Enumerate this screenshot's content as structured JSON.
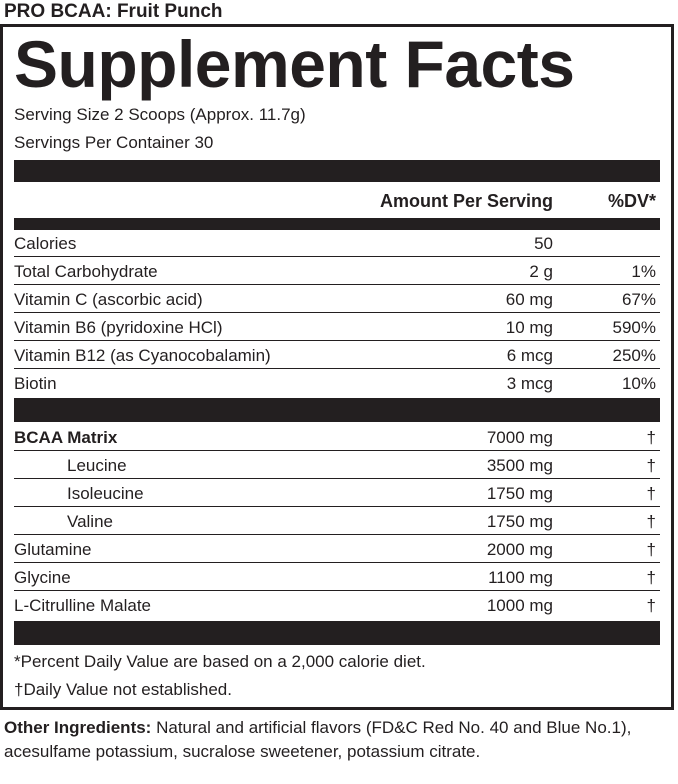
{
  "product_name": "PRO BCAA: Fruit Punch",
  "title": "Supplement Facts",
  "serving_size": "Serving Size 2 Scoops (Approx. 11.7g)",
  "servings_per_container": "Servings Per Container 30",
  "columns": {
    "amount": "Amount Per Serving",
    "dv": "%DV*"
  },
  "section1": [
    {
      "name": "Calories",
      "amount": "50",
      "dv": ""
    },
    {
      "name": "Total Carbohydrate",
      "amount": "2 g",
      "dv": "1%"
    },
    {
      "name": "Vitamin C (ascorbic acid)",
      "amount": "60 mg",
      "dv": "67%"
    },
    {
      "name": "Vitamin B6 (pyridoxine HCl)",
      "amount": "10 mg",
      "dv": "590%"
    },
    {
      "name": "Vitamin B12 (as Cyanocobalamin)",
      "amount": "6 mcg",
      "dv": "250%"
    },
    {
      "name": "Biotin",
      "amount": "3 mcg",
      "dv": "10%"
    }
  ],
  "section2": [
    {
      "name": "BCAA Matrix",
      "amount": "7000 mg",
      "dv": "†"
    },
    {
      "name": "Leucine",
      "amount": "3500 mg",
      "dv": "†"
    },
    {
      "name": "Isoleucine",
      "amount": "1750 mg",
      "dv": "†"
    },
    {
      "name": "Valine",
      "amount": "1750 mg",
      "dv": "†"
    },
    {
      "name": "Glutamine",
      "amount": "2000 mg",
      "dv": "†"
    },
    {
      "name": "Glycine",
      "amount": "1100 mg",
      "dv": "†"
    },
    {
      "name": "L-Citrulline Malate",
      "amount": "1000 mg",
      "dv": "†"
    }
  ],
  "footnotes": {
    "percent_dv": "*Percent Daily Value are based on a 2,000 calorie diet.",
    "dagger": "†Daily Value not established."
  },
  "other_ingredients": {
    "label": "Other Ingredients:",
    "text": " Natural and artificial flavors (FD&C Red No. 40 and Blue No.1), acesulfame potassium, sucralose sweetener, potassium citrate."
  }
}
